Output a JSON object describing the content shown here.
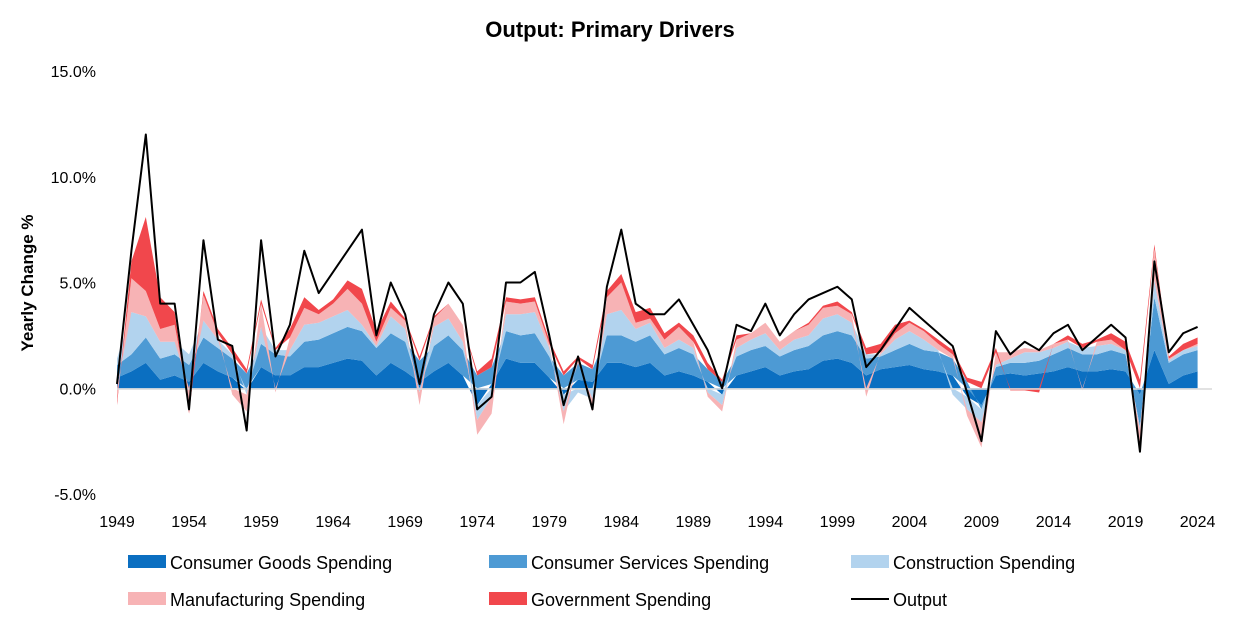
{
  "chart_data": {
    "type": "area",
    "title": "Output: Primary Drivers",
    "xlabel": "",
    "ylabel": "Yearly Change %",
    "ylim": [
      -5.0,
      15.0
    ],
    "xlim": [
      1949,
      2025
    ],
    "y_ticks": [
      "15.0%",
      "10.0%",
      "5.0%",
      "0.0%",
      "-5.0%"
    ],
    "y_tick_values": [
      15,
      10,
      5,
      0,
      -5
    ],
    "x_ticks": [
      "1949",
      "1954",
      "1959",
      "1964",
      "1969",
      "1974",
      "1979",
      "1984",
      "1989",
      "1994",
      "1999",
      "2004",
      "2009",
      "2014",
      "2019",
      "2024"
    ],
    "x": [
      1949,
      1950,
      1951,
      1952,
      1953,
      1954,
      1955,
      1956,
      1957,
      1958,
      1959,
      1960,
      1961,
      1962,
      1963,
      1964,
      1965,
      1966,
      1967,
      1968,
      1969,
      1970,
      1971,
      1972,
      1973,
      1974,
      1975,
      1976,
      1977,
      1978,
      1979,
      1980,
      1981,
      1982,
      1983,
      1984,
      1985,
      1986,
      1987,
      1988,
      1989,
      1990,
      1991,
      1992,
      1993,
      1994,
      1995,
      1996,
      1997,
      1998,
      1999,
      2000,
      2001,
      2002,
      2003,
      2004,
      2005,
      2006,
      2007,
      2008,
      2009,
      2010,
      2011,
      2012,
      2013,
      2014,
      2015,
      2016,
      2017,
      2018,
      2019,
      2020,
      2021,
      2022,
      2023,
      2024
    ],
    "series": [
      {
        "name": "Consumer Goods Spending",
        "color": "#0b6fc1",
        "values": [
          0.5,
          0.8,
          1.2,
          0.4,
          0.6,
          0.3,
          1.2,
          0.8,
          0.5,
          -0.1,
          1.0,
          0.6,
          0.6,
          1.0,
          1.0,
          1.2,
          1.4,
          1.3,
          0.6,
          1.2,
          0.8,
          0.3,
          0.8,
          1.2,
          0.6,
          -0.8,
          0.2,
          1.4,
          1.2,
          1.2,
          0.5,
          -0.3,
          0.4,
          0.3,
          1.2,
          1.2,
          1.0,
          1.2,
          0.6,
          0.8,
          0.6,
          0.3,
          -0.3,
          0.6,
          0.8,
          1.0,
          0.6,
          0.8,
          0.9,
          1.3,
          1.4,
          1.2,
          0.6,
          0.9,
          1.0,
          1.1,
          0.9,
          0.8,
          0.6,
          -0.4,
          -0.8,
          0.6,
          0.7,
          0.6,
          0.7,
          0.8,
          1.0,
          0.8,
          0.8,
          0.9,
          0.8,
          -0.3,
          1.8,
          0.2,
          0.6,
          0.8
        ]
      },
      {
        "name": "Consumer Services Spending",
        "color": "#4d9ad4",
        "values": [
          0.6,
          0.8,
          1.2,
          1.0,
          1.0,
          0.8,
          1.2,
          1.1,
          0.9,
          0.7,
          1.1,
          1.0,
          0.9,
          1.2,
          1.3,
          1.4,
          1.5,
          1.4,
          1.3,
          1.4,
          1.4,
          1.0,
          1.2,
          1.3,
          1.2,
          0.6,
          0.8,
          1.3,
          1.3,
          1.4,
          1.0,
          0.6,
          0.8,
          0.6,
          1.3,
          1.3,
          1.2,
          1.3,
          1.0,
          1.1,
          1.0,
          0.6,
          0.3,
          0.9,
          1.0,
          1.0,
          0.9,
          1.0,
          1.1,
          1.2,
          1.3,
          1.3,
          0.8,
          0.6,
          0.8,
          1.0,
          0.9,
          0.9,
          0.8,
          0.3,
          -0.2,
          0.4,
          0.5,
          0.6,
          0.6,
          0.8,
          0.9,
          0.8,
          0.8,
          0.9,
          0.8,
          -1.5,
          2.5,
          1.0,
          1.0,
          1.0
        ]
      },
      {
        "name": "Construction Spending",
        "color": "#b2d3ee",
        "values": [
          0.3,
          2.0,
          1.0,
          0.8,
          0.6,
          0.5,
          0.8,
          0.4,
          0.2,
          -0.2,
          0.8,
          0.2,
          0.3,
          0.8,
          0.8,
          0.8,
          0.8,
          0.3,
          0.1,
          0.8,
          0.6,
          -0.2,
          0.9,
          0.8,
          0.4,
          -0.7,
          -0.4,
          0.8,
          1.0,
          1.0,
          0.4,
          -0.8,
          -0.2,
          -0.5,
          1.0,
          1.2,
          0.6,
          0.6,
          0.3,
          0.4,
          0.3,
          -0.2,
          -0.5,
          0.4,
          0.5,
          0.6,
          0.3,
          0.5,
          0.5,
          0.8,
          0.8,
          0.6,
          0.2,
          0.1,
          0.5,
          0.6,
          0.5,
          0.1,
          -0.3,
          -0.6,
          -0.6,
          0.1,
          0.2,
          0.5,
          0.4,
          0.3,
          0.3,
          0.3,
          0.4,
          0.3,
          0.2,
          -0.2,
          0.8,
          0.1,
          0.2,
          0.2
        ]
      },
      {
        "name": "Manufacturing Spending",
        "color": "#f7b3b5",
        "values": [
          -0.6,
          1.6,
          1.2,
          0.6,
          0.8,
          -0.6,
          1.2,
          0.3,
          -0.3,
          -0.8,
          1.1,
          -0.2,
          0.6,
          0.8,
          0.4,
          0.6,
          1.0,
          1.0,
          0.2,
          0.4,
          0.4,
          -0.6,
          0.4,
          0.7,
          0.8,
          -0.7,
          -0.8,
          0.6,
          0.5,
          0.5,
          0.2,
          -0.6,
          0.2,
          -0.6,
          0.8,
          1.3,
          0.3,
          0.2,
          0.4,
          0.6,
          0.3,
          -0.2,
          -0.3,
          0.4,
          0.3,
          0.5,
          0.4,
          0.4,
          0.5,
          0.5,
          0.4,
          0.4,
          -0.4,
          0.1,
          0.3,
          0.4,
          0.4,
          0.3,
          0.2,
          -0.3,
          -1.2,
          0.6,
          0.3,
          0.2,
          0.1,
          0.2,
          0.1,
          -0.1,
          0.2,
          0.2,
          0.0,
          -0.8,
          1.5,
          0.1,
          0.0,
          0.1
        ]
      },
      {
        "name": "Government Spending",
        "color": "#f1474c",
        "values": [
          -0.2,
          0.8,
          3.5,
          1.5,
          0.6,
          -0.6,
          0.2,
          0.2,
          0.3,
          0.2,
          0.2,
          0.1,
          0.4,
          0.5,
          0.2,
          0.2,
          0.4,
          0.7,
          0.5,
          0.3,
          0.1,
          0.2,
          0.1,
          0.0,
          0.0,
          0.2,
          0.4,
          0.2,
          0.2,
          0.2,
          0.2,
          0.2,
          0.1,
          0.2,
          0.3,
          0.4,
          0.5,
          0.5,
          0.3,
          0.2,
          0.3,
          0.3,
          0.1,
          0.2,
          0.0,
          0.0,
          0.0,
          0.0,
          0.1,
          0.1,
          0.2,
          0.1,
          0.3,
          0.4,
          0.4,
          0.1,
          0.1,
          0.2,
          0.2,
          0.2,
          0.3,
          0.2,
          -0.1,
          -0.1,
          -0.2,
          0.0,
          0.2,
          0.2,
          0.1,
          0.3,
          0.4,
          0.4,
          0.2,
          0.1,
          0.3,
          0.3
        ]
      },
      {
        "name": "Output",
        "color": "#000000",
        "values": [
          0.2,
          6.5,
          12.0,
          4.0,
          4.0,
          -1.0,
          7.0,
          2.3,
          2.0,
          -2.0,
          7.0,
          1.5,
          3.0,
          6.5,
          4.5,
          5.5,
          6.5,
          7.5,
          2.5,
          5.0,
          3.5,
          0.2,
          3.5,
          5.0,
          4.0,
          -1.0,
          -0.4,
          5.0,
          5.0,
          5.5,
          2.5,
          -0.8,
          1.5,
          -1.0,
          4.8,
          7.5,
          4.0,
          3.5,
          3.5,
          4.2,
          3.0,
          1.8,
          0.0,
          3.0,
          2.7,
          4.0,
          2.5,
          3.5,
          4.2,
          4.5,
          4.8,
          4.2,
          1.0,
          1.8,
          2.8,
          3.8,
          3.2,
          2.6,
          2.0,
          -0.2,
          -2.5,
          2.7,
          1.6,
          2.2,
          1.8,
          2.6,
          3.0,
          1.8,
          2.4,
          3.0,
          2.4,
          -3.0,
          6.0,
          1.7,
          2.6,
          2.9
        ]
      }
    ],
    "grid": false,
    "legend_placement": "bottom"
  }
}
